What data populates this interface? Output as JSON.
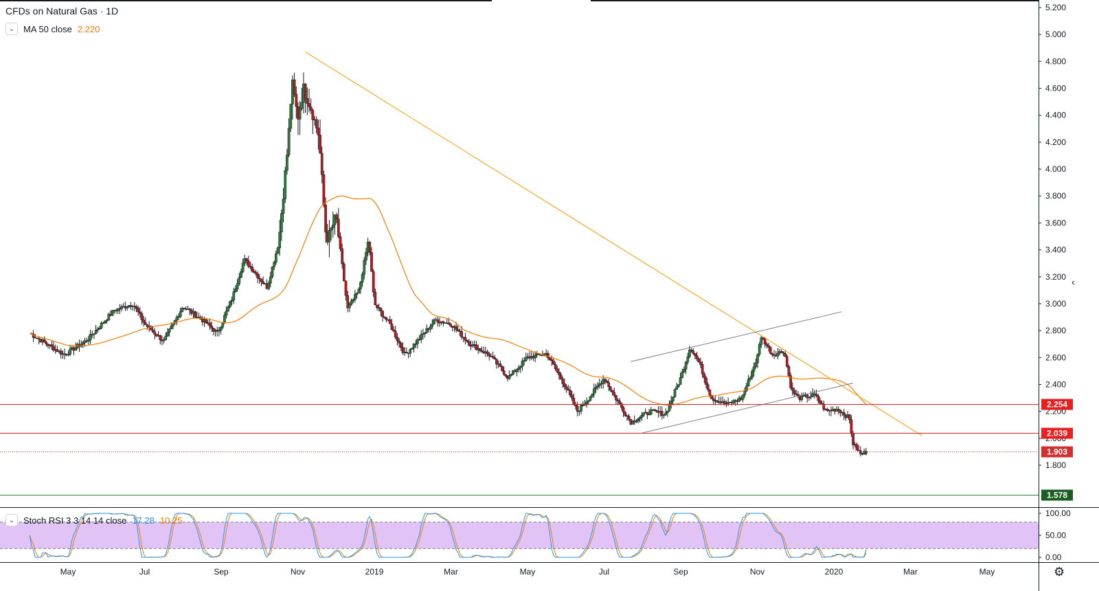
{
  "header": {
    "title": "CFDs on Natural Gas · 1D",
    "ma_label": "MA 50 close",
    "ma_value": "2.220",
    "rsi_label": "Stoch RSI 3 3 14 14 close",
    "rsi_k": "17.28",
    "rsi_d": "10.25"
  },
  "colors": {
    "up": "#26a69a",
    "down": "#ef5350",
    "candle_body_up": "#2e7d32",
    "candle_body_down": "#b71c1c",
    "ma": "#f57c00",
    "trendline": "#ff9800",
    "channel": "#787b86",
    "support": "#e91e1e",
    "green_level": "#2e7d32",
    "rsi_band": "#e1c4f5",
    "rsi_k": "#2196f3",
    "rsi_d": "#f57c00"
  },
  "icons": {
    "collapse": "chevron-down-icon",
    "settings": "gear-icon"
  },
  "chart_data": {
    "type": "candlestick",
    "title": "CFDs on Natural Gas · 1D",
    "price_axis": {
      "range": [
        1.5,
        5.3
      ],
      "ticks": [
        "5.200",
        "5.000",
        "4.800",
        "4.600",
        "4.400",
        "4.200",
        "4.000",
        "3.800",
        "3.600",
        "3.400",
        "3.200",
        "3.000",
        "2.800",
        "2.600",
        "2.400",
        "2.200",
        "2.000",
        "1.800"
      ]
    },
    "time_axis": {
      "labels": [
        {
          "label": "May",
          "month": 1
        },
        {
          "label": "Jul",
          "month": 3
        },
        {
          "label": "Sep",
          "month": 5
        },
        {
          "label": "Nov",
          "month": 7
        },
        {
          "label": "2019",
          "month": 9
        },
        {
          "label": "Mar",
          "month": 11
        },
        {
          "label": "May",
          "month": 13
        },
        {
          "label": "Jul",
          "month": 15
        },
        {
          "label": "Sep",
          "month": 17
        },
        {
          "label": "Nov",
          "month": 19
        },
        {
          "label": "2020",
          "month": 21
        },
        {
          "label": "Mar",
          "month": 23
        },
        {
          "label": "May",
          "month": 25
        }
      ]
    },
    "price_path": [
      [
        0,
        2.78
      ],
      [
        0.9,
        2.62
      ],
      [
        1.5,
        2.73
      ],
      [
        2.2,
        2.95
      ],
      [
        2.7,
        3.0
      ],
      [
        3.0,
        2.85
      ],
      [
        3.5,
        2.72
      ],
      [
        4.0,
        2.98
      ],
      [
        4.6,
        2.86
      ],
      [
        4.9,
        2.78
      ],
      [
        5.3,
        3.05
      ],
      [
        5.6,
        3.33
      ],
      [
        6.2,
        3.12
      ],
      [
        6.5,
        3.45
      ],
      [
        6.75,
        4.2
      ],
      [
        6.85,
        4.65
      ],
      [
        7.0,
        4.38
      ],
      [
        7.15,
        4.6
      ],
      [
        7.35,
        4.45
      ],
      [
        7.55,
        4.25
      ],
      [
        7.75,
        3.45
      ],
      [
        8.0,
        3.65
      ],
      [
        8.3,
        2.96
      ],
      [
        8.6,
        3.1
      ],
      [
        8.85,
        3.48
      ],
      [
        9.0,
        3.0
      ],
      [
        9.4,
        2.85
      ],
      [
        9.8,
        2.62
      ],
      [
        10.2,
        2.75
      ],
      [
        10.6,
        2.88
      ],
      [
        11.0,
        2.85
      ],
      [
        11.5,
        2.7
      ],
      [
        12.0,
        2.62
      ],
      [
        12.5,
        2.45
      ],
      [
        13.0,
        2.6
      ],
      [
        13.5,
        2.63
      ],
      [
        14.0,
        2.38
      ],
      [
        14.3,
        2.2
      ],
      [
        14.6,
        2.3
      ],
      [
        15.0,
        2.45
      ],
      [
        15.3,
        2.3
      ],
      [
        15.7,
        2.12
      ],
      [
        16.2,
        2.2
      ],
      [
        16.6,
        2.18
      ],
      [
        17.0,
        2.45
      ],
      [
        17.25,
        2.68
      ],
      [
        17.5,
        2.55
      ],
      [
        17.8,
        2.3
      ],
      [
        18.2,
        2.25
      ],
      [
        18.6,
        2.3
      ],
      [
        19.0,
        2.6
      ],
      [
        19.1,
        2.76
      ],
      [
        19.4,
        2.62
      ],
      [
        19.7,
        2.65
      ],
      [
        19.9,
        2.35
      ],
      [
        20.1,
        2.3
      ],
      [
        20.5,
        2.32
      ],
      [
        20.8,
        2.2
      ],
      [
        21.1,
        2.22
      ],
      [
        21.4,
        2.15
      ],
      [
        21.5,
        1.96
      ],
      [
        21.7,
        1.88
      ],
      [
        21.85,
        1.9
      ]
    ],
    "ma_value": 2.22,
    "levels": [
      {
        "value": 2.254,
        "label": "2.254",
        "type": "support-resistance"
      },
      {
        "value": 2.039,
        "label": "2.039",
        "type": "support-resistance"
      },
      {
        "value": 1.903,
        "label": "1.903",
        "type": "last-price"
      },
      {
        "value": 1.578,
        "label": "1.578",
        "type": "support"
      }
    ],
    "trendline": {
      "from": [
        7.2,
        4.87
      ],
      "to": [
        23.3,
        2.02
      ]
    },
    "channel": {
      "upper": {
        "from": [
          15.7,
          2.57
        ],
        "to": [
          21.2,
          2.94
        ]
      },
      "lower": {
        "from": [
          16.0,
          2.04
        ],
        "to": [
          21.5,
          2.41
        ]
      }
    },
    "indicators": {
      "stoch_rsi": {
        "k": 17.28,
        "d": 10.25,
        "range": [
          0,
          100
        ],
        "bands": [
          20,
          80
        ],
        "ticks": [
          "100.00",
          "50.00",
          "0.00"
        ]
      }
    }
  }
}
